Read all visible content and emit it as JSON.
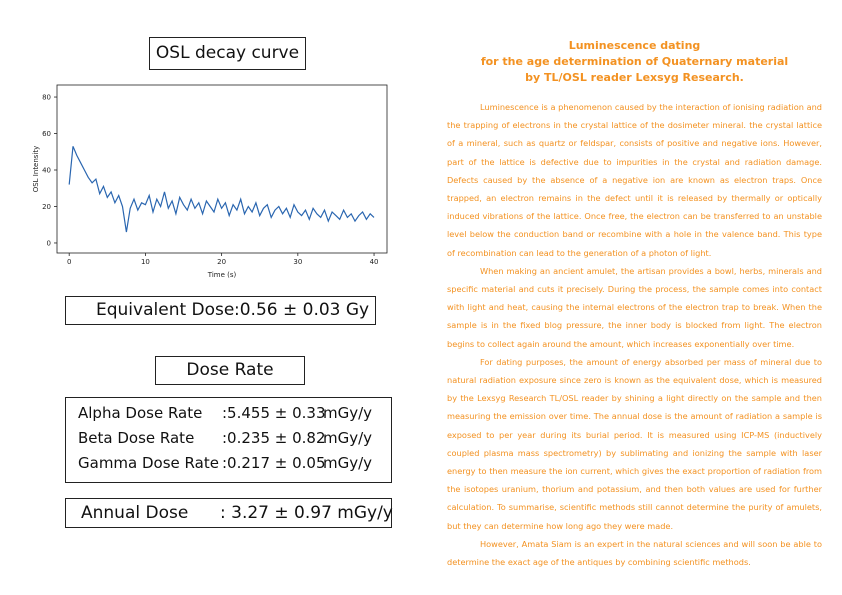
{
  "panel_title": "OSL decay curve",
  "chart_data": {
    "type": "line",
    "x_label": "Time (s)",
    "y_label": "OSL Intensity",
    "color": "#2a66b0",
    "x": [
      0,
      0.5,
      1,
      1.5,
      2,
      2.5,
      3,
      3.5,
      4,
      4.5,
      5,
      5.5,
      6,
      6.5,
      7,
      7.5,
      8,
      8.5,
      9,
      9.5,
      10,
      10.5,
      11,
      11.5,
      12,
      12.5,
      13,
      13.5,
      14,
      14.5,
      15,
      15.5,
      16,
      16.5,
      17,
      17.5,
      18,
      18.5,
      19,
      19.5,
      20,
      20.5,
      21,
      21.5,
      22,
      22.5,
      23,
      23.5,
      24,
      24.5,
      25,
      25.5,
      26,
      26.5,
      27,
      27.5,
      28,
      28.5,
      29,
      29.5,
      30,
      30.5,
      31,
      31.5,
      32,
      32.5,
      33,
      33.5,
      34,
      34.5,
      35,
      35.5,
      36,
      36.5,
      37,
      37.5,
      38,
      38.5,
      39,
      39.5,
      40
    ],
    "values": [
      32,
      53,
      48,
      44,
      40,
      36,
      33,
      35,
      27,
      31,
      25,
      28,
      22,
      26,
      20,
      6,
      19,
      24,
      18,
      22,
      21,
      26,
      17,
      24,
      20,
      28,
      19,
      23,
      16,
      25,
      21,
      18,
      24,
      19,
      22,
      16,
      23,
      20,
      17,
      24,
      19,
      22,
      15,
      21,
      18,
      24,
      16,
      20,
      17,
      22,
      15,
      19,
      21,
      14,
      18,
      20,
      16,
      19,
      14,
      21,
      17,
      15,
      18,
      13,
      19,
      16,
      14,
      18,
      12,
      17,
      15,
      13,
      18,
      14,
      16,
      12,
      15,
      17,
      13,
      16,
      14
    ],
    "xlim": [
      -1.6,
      41.7
    ],
    "xticks": [
      0,
      10,
      20,
      30,
      40
    ],
    "ylim": [
      -5.5,
      86.6
    ],
    "yticks": [
      0,
      20,
      40,
      60,
      80
    ]
  },
  "equivalent_dose": {
    "label": "Equivalent Dose",
    "value": ":0.56 ± 0.03 Gy"
  },
  "dose_rate": {
    "title": "Dose Rate",
    "rows": [
      {
        "label": "Alpha Dose Rate",
        "value": ":5.455 ± 0.33",
        "unit": "mGy/y"
      },
      {
        "label": "Beta Dose Rate",
        "value": ":0.235 ± 0.82",
        "unit": "mGy/y"
      },
      {
        "label": "Gamma Dose Rate",
        "value": ":0.217 ± 0.05",
        "unit": "mGy/y"
      }
    ]
  },
  "annual_dose": {
    "label": "Annual Dose",
    "value": ": 3.27 ± 0.97 mGy/y"
  },
  "article": {
    "title": [
      "Luminescence dating",
      "for the age determination of Quaternary material",
      "by TL/OSL reader Lexsyg Research."
    ],
    "paragraphs": [
      "Luminescence is a phenomenon caused by the interaction of ionising radiation and the trapping of electrons in the crystal lattice of the dosimeter mineral. the crystal lattice of a mineral, such as quartz or feldspar, consists of positive and negative ions. However, part of the lattice is defective due to impurities in the crystal and radiation damage. Defects caused by the absence of a negative ion are known as electron traps. Once trapped, an electron remains in the defect until it is released by thermally or optically induced vibrations of the lattice. Once free, the electron can be transferred to an unstable level below the conduction band or recombine with a hole in the valence band. This type of recombination can lead to the generation of a photon of light.",
      "When making an ancient amulet, the artisan provides a bowl, herbs, minerals and specific material and cuts it precisely. During the process, the sample comes into contact with light and heat, causing the internal electrons of the electron trap to break. When the sample is in the fixed blog pressure, the inner body is blocked from light. The electron begins to collect again around the amount, which increases exponentially over time.",
      "For dating purposes, the amount of energy absorbed per mass of mineral due to natural radiation exposure since zero is known as the equivalent dose, which is measured by the Lexsyg Research TL/OSL reader by shining a light directly on the sample and then measuring the emission over time. The annual dose is the amount of radiation a sample is exposed to per year during its burial period. It is measured using ICP-MS (inductively coupled plasma mass spectrometry) by sublimating and ionizing the sample with laser energy to then measure the ion current, which gives the exact proportion of radiation from the isotopes uranium, thorium and potassium, and then both values are used for further calculation. To summarise, scientific methods still cannot determine the purity of amulets, but they can determine how long ago they were made.",
      "However, Amata Siam is an expert in the natural sciences and will soon be able to determine the exact age of the antiques by combining scientific methods."
    ]
  }
}
